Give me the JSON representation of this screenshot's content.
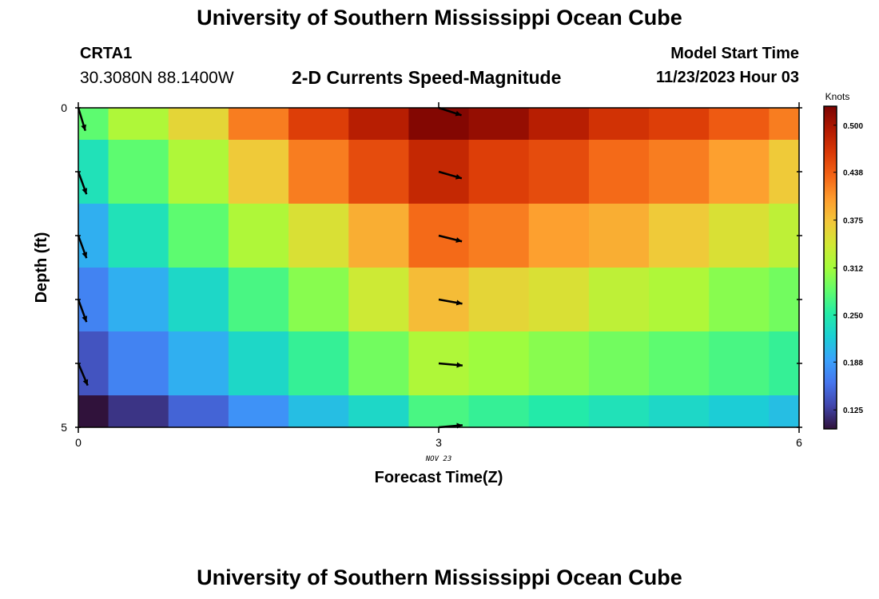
{
  "header": {
    "title": "University of Southern Mississippi Ocean Cube",
    "station_id": "CRTA1",
    "station_coords": "30.3080N  88.1400W",
    "subtitle": "2-D Currents Speed-Magnitude",
    "start_label": "Model Start Time",
    "start_value": "11/23/2023 Hour 03"
  },
  "footer": {
    "title": "University of Southern Mississippi Ocean Cube"
  },
  "chart_data": {
    "type": "heatmap",
    "title": "2-D Currents Speed-Magnitude",
    "xlabel": "Forecast Time(Z)",
    "ylabel": "Depth (ft)",
    "x_date_label": "NOV 23",
    "xlim": [
      0,
      6
    ],
    "ylim": [
      5,
      0
    ],
    "x_ticks": [
      "0",
      "3",
      "6"
    ],
    "y_ticks": [
      "0",
      "5"
    ],
    "x_edges": [
      0,
      0.25,
      0.75,
      1.25,
      1.75,
      2.25,
      2.75,
      3.25,
      3.75,
      4.25,
      4.75,
      5.25,
      5.75,
      6
    ],
    "depth_edges": [
      0,
      0.5,
      1.5,
      2.5,
      3.5,
      4.5,
      5
    ],
    "values": [
      [
        0.28,
        0.32,
        0.36,
        0.42,
        0.46,
        0.49,
        0.52,
        0.51,
        0.49,
        0.47,
        0.46,
        0.44,
        0.42
      ],
      [
        0.24,
        0.28,
        0.32,
        0.37,
        0.42,
        0.45,
        0.48,
        0.46,
        0.45,
        0.43,
        0.42,
        0.4,
        0.37
      ],
      [
        0.2,
        0.24,
        0.28,
        0.32,
        0.35,
        0.39,
        0.43,
        0.42,
        0.4,
        0.39,
        0.37,
        0.35,
        0.33
      ],
      [
        0.17,
        0.2,
        0.23,
        0.27,
        0.3,
        0.34,
        0.38,
        0.36,
        0.35,
        0.33,
        0.32,
        0.3,
        0.29
      ],
      [
        0.14,
        0.17,
        0.2,
        0.23,
        0.26,
        0.29,
        0.32,
        0.31,
        0.3,
        0.29,
        0.28,
        0.27,
        0.26
      ],
      [
        0.09,
        0.12,
        0.15,
        0.18,
        0.21,
        0.23,
        0.27,
        0.26,
        0.25,
        0.24,
        0.23,
        0.22,
        0.21
      ]
    ],
    "vectors": [
      {
        "time": 0,
        "depth": 0,
        "dir_deg": 163
      },
      {
        "time": 0,
        "depth": 1,
        "dir_deg": 160
      },
      {
        "time": 0,
        "depth": 2,
        "dir_deg": 160
      },
      {
        "time": 0,
        "depth": 3,
        "dir_deg": 160
      },
      {
        "time": 0,
        "depth": 4,
        "dir_deg": 157
      },
      {
        "time": 3,
        "depth": 0,
        "dir_deg": 108
      },
      {
        "time": 3,
        "depth": 1,
        "dir_deg": 106
      },
      {
        "time": 3,
        "depth": 2,
        "dir_deg": 104
      },
      {
        "time": 3,
        "depth": 3,
        "dir_deg": 100
      },
      {
        "time": 3,
        "depth": 4,
        "dir_deg": 95
      },
      {
        "time": 3,
        "depth": 5,
        "dir_deg": 85
      }
    ],
    "colorbar": {
      "label": "Knots",
      "min": 0.1,
      "max": 0.525,
      "tick_values": [
        0.125,
        0.188,
        0.25,
        0.312,
        0.375,
        0.438,
        0.5
      ],
      "tick_labels": [
        "0.125",
        "0.188",
        "0.250",
        "0.312",
        "0.375",
        "0.438",
        "0.500"
      ],
      "colors": [
        "#30123b",
        "#4145ab",
        "#4675ed",
        "#39a2fc",
        "#1bcfd4",
        "#24eca6",
        "#61fc6c",
        "#a4fc3b",
        "#d1e834",
        "#f3c63a",
        "#fe9b2d",
        "#f36315",
        "#d93806",
        "#b11901",
        "#7a0402"
      ]
    }
  }
}
